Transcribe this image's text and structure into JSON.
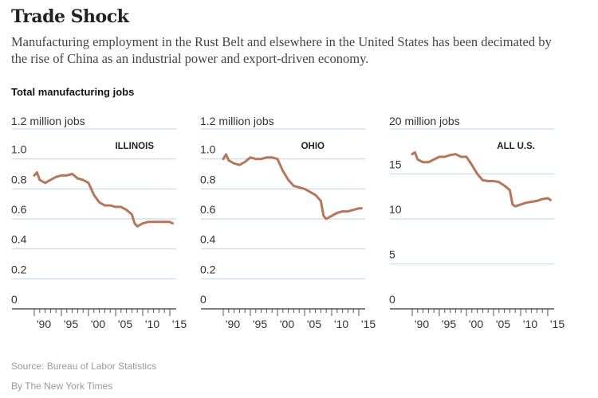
{
  "title": "Trade Shock",
  "subtitle": "Manufacturing employment in the Rust Belt and elsewhere in the United States has been decimated by the rise of China as an industrial power and export-driven economy.",
  "lead": "Total manufacturing jobs",
  "source": "Source: Bureau of Labor Statistics",
  "byline": "By The New York Times",
  "colors": {
    "line": "#b5765a",
    "grid": "#cfe3ee",
    "axis": "#555"
  },
  "chart_data": [
    {
      "type": "line",
      "label": "ILLINOIS",
      "unit_label": "1.2 million jobs",
      "ylim": [
        0,
        1.2
      ],
      "yticks": [
        "0",
        "0.2",
        "0.4",
        "0.6",
        "0.8",
        "1.0"
      ],
      "ytick_values": [
        0,
        0.2,
        0.4,
        0.6,
        0.8,
        1.0
      ],
      "xticks": [
        "'90",
        "'95",
        "'00",
        "'05",
        "'10",
        "'15"
      ],
      "xlim": [
        1990,
        2015
      ],
      "x": [
        1990,
        1990.5,
        1991,
        1992,
        1993,
        1994,
        1995,
        1996,
        1997,
        1998,
        1999,
        2000,
        2001,
        2002,
        2003,
        2004,
        2005,
        2006,
        2007,
        2008,
        2008.5,
        2009,
        2010,
        2011,
        2012,
        2013,
        2014,
        2015,
        2015.5
      ],
      "y": [
        0.89,
        0.91,
        0.86,
        0.84,
        0.86,
        0.88,
        0.89,
        0.89,
        0.9,
        0.87,
        0.86,
        0.84,
        0.76,
        0.71,
        0.69,
        0.69,
        0.68,
        0.68,
        0.66,
        0.63,
        0.57,
        0.55,
        0.57,
        0.58,
        0.58,
        0.58,
        0.58,
        0.58,
        0.57
      ]
    },
    {
      "type": "line",
      "label": "OHIO",
      "unit_label": "1.2 million jobs",
      "ylim": [
        0,
        1.2
      ],
      "yticks": [
        "0",
        "0.2",
        "0.4",
        "0.6",
        "0.8",
        "1.0"
      ],
      "ytick_values": [
        0,
        0.2,
        0.4,
        0.6,
        0.8,
        1.0
      ],
      "xticks": [
        "'90",
        "'95",
        "'00",
        "'05",
        "'10",
        "'15"
      ],
      "xlim": [
        1990,
        2015
      ],
      "x": [
        1990,
        1990.5,
        1991,
        1992,
        1993,
        1994,
        1995,
        1996,
        1997,
        1998,
        1999,
        2000,
        2001,
        2002,
        2003,
        2004,
        2005,
        2006,
        2007,
        2008,
        2008.5,
        2009,
        2010,
        2011,
        2012,
        2013,
        2014,
        2015,
        2015.5
      ],
      "y": [
        1.0,
        1.03,
        0.99,
        0.97,
        0.96,
        0.98,
        1.01,
        1.0,
        1.0,
        1.01,
        1.01,
        1.0,
        0.92,
        0.86,
        0.82,
        0.81,
        0.8,
        0.78,
        0.76,
        0.72,
        0.62,
        0.6,
        0.62,
        0.64,
        0.65,
        0.65,
        0.66,
        0.67,
        0.67
      ]
    },
    {
      "type": "line",
      "label": "ALL U.S.",
      "unit_label": "20 million jobs",
      "ylim": [
        0,
        20
      ],
      "yticks": [
        "0",
        "5",
        "10",
        "15"
      ],
      "ytick_values": [
        0,
        5,
        10,
        15
      ],
      "xticks": [
        "'90",
        "'95",
        "'00",
        "'05",
        "'10",
        "'15"
      ],
      "xlim": [
        1990,
        2015
      ],
      "x": [
        1990,
        1990.5,
        1991,
        1992,
        1993,
        1994,
        1995,
        1996,
        1997,
        1998,
        1999,
        2000,
        2001,
        2002,
        2003,
        2004,
        2005,
        2006,
        2007,
        2008,
        2008.5,
        2009,
        2010,
        2011,
        2012,
        2013,
        2014,
        2015,
        2015.5
      ],
      "y": [
        17.2,
        17.4,
        16.6,
        16.3,
        16.3,
        16.6,
        16.9,
        16.9,
        17.1,
        17.2,
        16.9,
        16.9,
        16.0,
        15.0,
        14.3,
        14.2,
        14.2,
        14.1,
        13.7,
        13.2,
        11.6,
        11.4,
        11.6,
        11.8,
        11.9,
        12.0,
        12.2,
        12.3,
        12.1
      ]
    }
  ]
}
